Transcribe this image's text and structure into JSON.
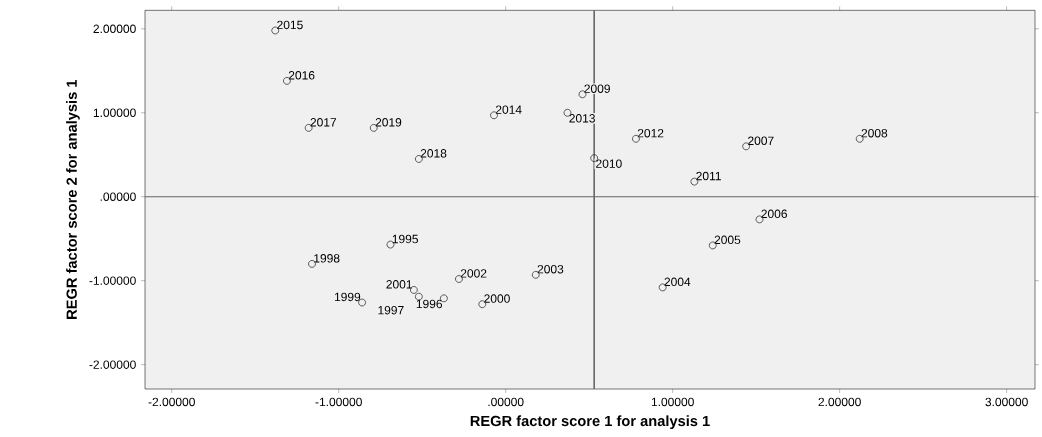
{
  "chart_data": {
    "type": "scatter",
    "xlabel": "REGR factor score   1 for analysis 1",
    "ylabel": "REGR factor score   2 for analysis 1",
    "x": [
      -1.38,
      -1.31,
      -1.18,
      -0.79,
      -0.52,
      -0.07,
      0.46,
      0.37,
      0.78,
      0.53,
      1.44,
      2.12,
      1.13,
      1.52,
      1.24,
      0.94,
      0.18,
      -0.28,
      -0.14,
      -0.37,
      -0.55,
      -0.52,
      -0.86,
      -1.16,
      -0.69
    ],
    "series": [
      {
        "color": "#333333",
        "values": [
          1.98,
          1.38,
          0.82,
          0.82,
          0.45,
          0.97,
          1.22,
          1.0,
          0.69,
          0.46,
          0.6,
          0.69,
          0.18,
          -0.27,
          -0.58,
          -1.08,
          -0.93,
          -0.98,
          -1.28,
          -1.21,
          -1.11,
          -1.19,
          -1.26,
          -0.8,
          -0.57
        ]
      }
    ],
    "marker": "circle",
    "grid": false,
    "xlim": [
      -2.16,
      3.17
    ],
    "ylim": [
      -2.29,
      2.22
    ],
    "xticks": [
      {
        "value": -2,
        "label": "-2.00000"
      },
      {
        "value": -1,
        "label": "-1.00000"
      },
      {
        "value": 0,
        "label": ".00000"
      },
      {
        "value": 1,
        "label": "1.00000"
      },
      {
        "value": 2,
        "label": "2.00000"
      },
      {
        "value": 3,
        "label": "3.00000"
      }
    ],
    "yticks": [
      {
        "value": -2,
        "label": "-2.00000"
      },
      {
        "value": -1,
        "label": "-1.00000"
      },
      {
        "value": 0,
        "label": ".00000"
      },
      {
        "value": 1,
        "label": "1.00000"
      },
      {
        "value": 2,
        "label": "2.00000"
      }
    ],
    "ref_lines": [
      {
        "axis": "x",
        "value": 0.53,
        "color": "#666666"
      },
      {
        "axis": "y",
        "value": 0,
        "color": "#666666"
      }
    ],
    "annotations": [
      {
        "text": "2015",
        "x": -1.38,
        "y": 1.98
      },
      {
        "text": "2016",
        "x": -1.31,
        "y": 1.38
      },
      {
        "text": "2017",
        "x": -1.18,
        "y": 0.82
      },
      {
        "text": "2019",
        "x": -0.79,
        "y": 0.82
      },
      {
        "text": "2018",
        "x": -0.52,
        "y": 0.45
      },
      {
        "text": "2014",
        "x": -0.07,
        "y": 0.97
      },
      {
        "text": "2009",
        "x": 0.46,
        "y": 1.22
      },
      {
        "text": "2013",
        "x": 0.37,
        "y": 1.0
      },
      {
        "text": "2012",
        "x": 0.78,
        "y": 0.69
      },
      {
        "text": "2010",
        "x": 0.53,
        "y": 0.46
      },
      {
        "text": "2007",
        "x": 1.44,
        "y": 0.6
      },
      {
        "text": "2008",
        "x": 2.12,
        "y": 0.69
      },
      {
        "text": "2011",
        "x": 1.13,
        "y": 0.18
      },
      {
        "text": "2006",
        "x": 1.52,
        "y": -0.27
      },
      {
        "text": "2005",
        "x": 1.24,
        "y": -0.58
      },
      {
        "text": "2004",
        "x": 0.94,
        "y": -1.08
      },
      {
        "text": "2003",
        "x": 0.18,
        "y": -0.93
      },
      {
        "text": "2002",
        "x": -0.28,
        "y": -0.98
      },
      {
        "text": "2000",
        "x": -0.14,
        "y": -1.28
      },
      {
        "text": "1996",
        "x": -0.37,
        "y": -1.21
      },
      {
        "text": "2001",
        "x": -0.55,
        "y": -1.11
      },
      {
        "text": "1997",
        "x": -0.52,
        "y": -1.19
      },
      {
        "text": "1999",
        "x": -0.86,
        "y": -1.26
      },
      {
        "text": "1998",
        "x": -1.16,
        "y": -0.8
      },
      {
        "text": "1995",
        "x": -0.69,
        "y": -0.57
      }
    ]
  }
}
